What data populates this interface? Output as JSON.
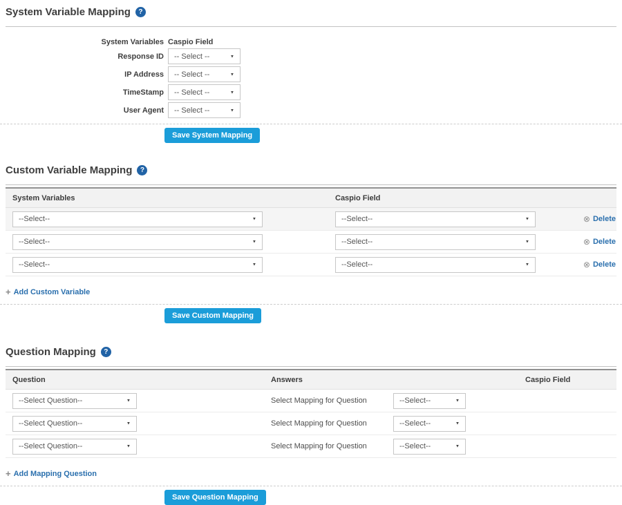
{
  "colors": {
    "accent_button": "#1b9dd9",
    "link_blue": "#2a6fad",
    "help_icon_bg": "#2163a6",
    "table_header_bg": "#f2f2f2",
    "shaded_row_bg": "#f5f5f5"
  },
  "icons": {
    "help": "?",
    "add": "+",
    "delete": "⊗"
  },
  "sections": {
    "system": {
      "title": "System Variable Mapping",
      "columns": {
        "variables": "System Variables",
        "caspio": "Caspio Field"
      },
      "rows": [
        "Response ID",
        "IP Address",
        "TimeStamp",
        "User Agent"
      ],
      "select_placeholder": "-- Select --",
      "save_label": "Save System Mapping"
    },
    "custom": {
      "title": "Custom Variable Mapping",
      "columns": {
        "variables": "System Variables",
        "caspio": "Caspio Field"
      },
      "select_placeholder": "--Select--",
      "delete_label": "Delete",
      "add_label": "Add Custom Variable",
      "save_label": "Save Custom Mapping"
    },
    "question": {
      "title": "Question Mapping",
      "columns": {
        "question": "Question",
        "answers": "Answers",
        "caspio": "Caspio Field"
      },
      "question_select_placeholder": "--Select Question--",
      "answers_row_text": "Select Mapping for Question",
      "answers_select_placeholder": "--Select--",
      "add_label": "Add Mapping Question",
      "save_label": "Save Question Mapping"
    }
  }
}
